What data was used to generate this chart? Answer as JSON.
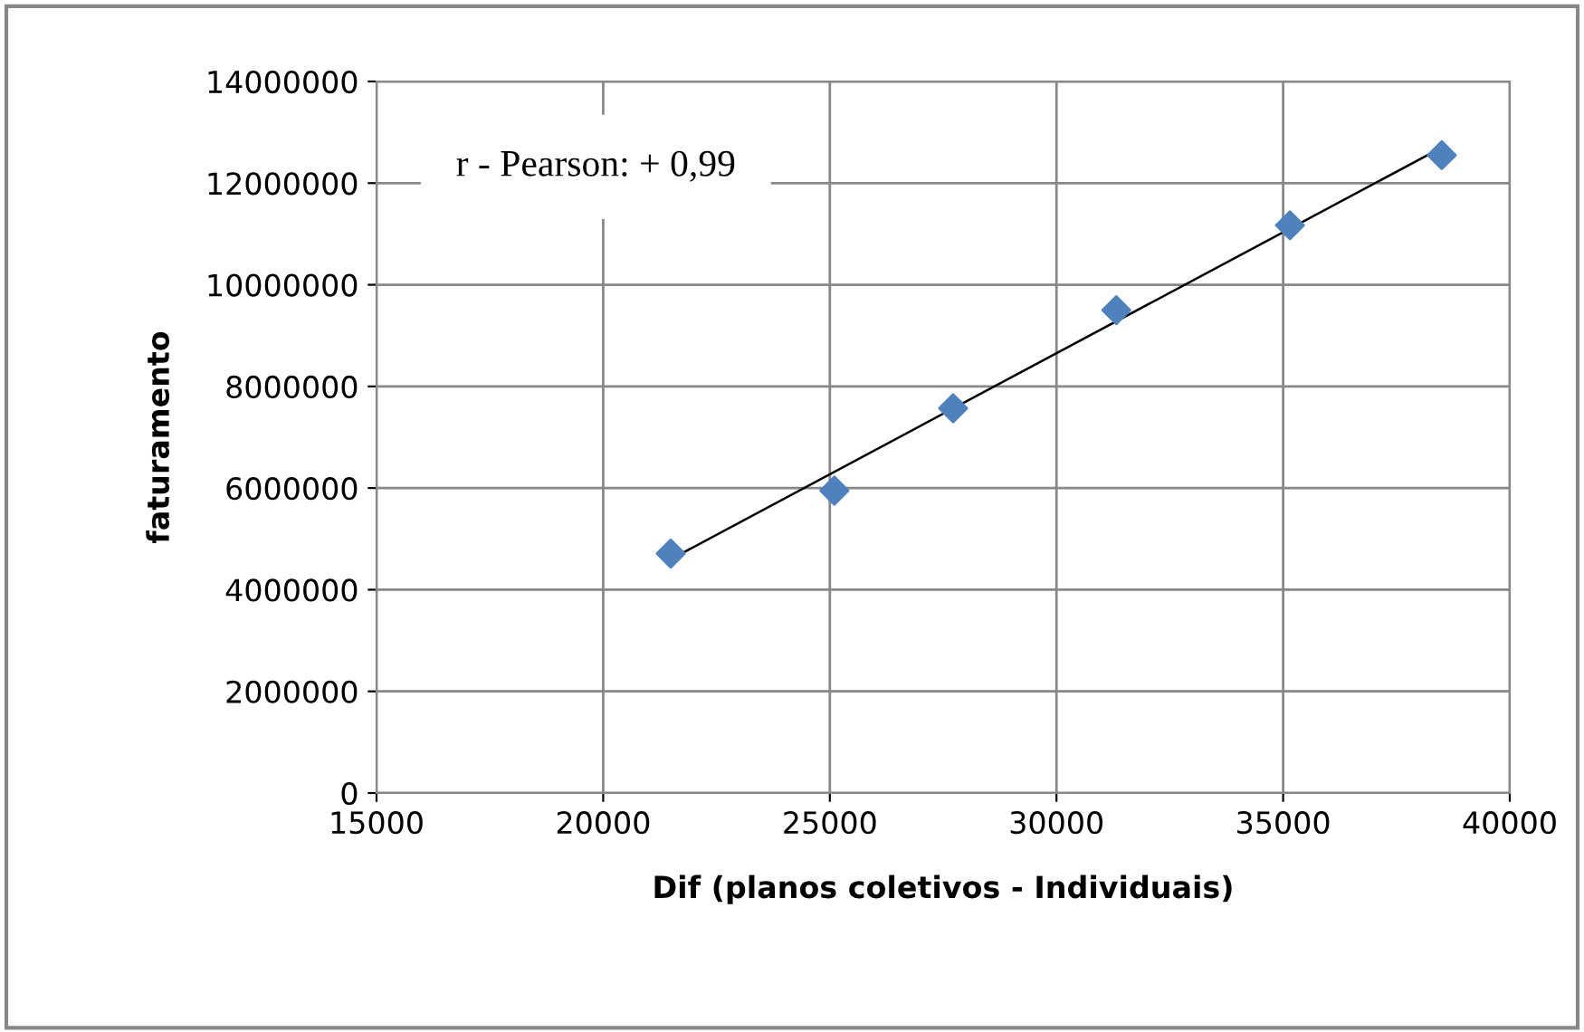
{
  "chart_data": {
    "type": "scatter",
    "xlabel": "Dif (planos coletivos - Individuais)",
    "ylabel": "faturamento",
    "annotations": [
      "r - Pearson: + 0,99"
    ],
    "series": [
      {
        "color": "#4f81bd",
        "marker": "diamond",
        "x": [
          21490,
          25100,
          27720,
          31320,
          35150,
          38500
        ],
        "values": [
          4710000,
          5950000,
          7570000,
          9500000,
          11170000,
          12550000
        ]
      },
      {
        "type": "line",
        "color": "#000000",
        "marker": "none",
        "line_style": "solid",
        "x": [
          21490,
          38500
        ],
        "values": [
          4600000,
          12700000
        ]
      }
    ],
    "xlim": [
      15000,
      40000
    ],
    "xticks": [
      15000,
      20000,
      25000,
      30000,
      35000,
      40000
    ],
    "ylim": [
      0,
      14000000
    ],
    "yticks": [
      0,
      2000000,
      4000000,
      6000000,
      8000000,
      10000000,
      12000000,
      14000000
    ],
    "grid": true,
    "legend": false
  }
}
